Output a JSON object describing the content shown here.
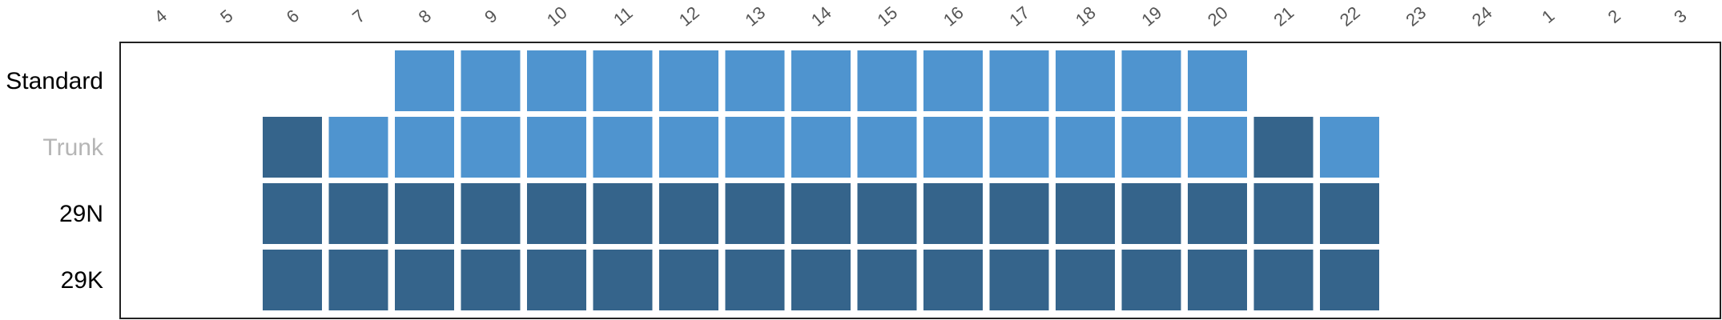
{
  "chart_data": {
    "type": "heatmap",
    "columns": [
      "4",
      "5",
      "6",
      "7",
      "8",
      "9",
      "10",
      "11",
      "12",
      "13",
      "14",
      "15",
      "16",
      "17",
      "18",
      "19",
      "20",
      "21",
      "22",
      "23",
      "24",
      "1",
      "2",
      "3"
    ],
    "rows": [
      "Standard",
      "Trunk",
      "29N",
      "29K"
    ],
    "cells": [
      [
        null,
        null,
        null,
        null,
        "light",
        "light",
        "light",
        "light",
        "light",
        "light",
        "light",
        "light",
        "light",
        "light",
        "light",
        "light",
        "light",
        null,
        null,
        null,
        null,
        null,
        null,
        null
      ],
      [
        null,
        null,
        "dark",
        "light",
        "light",
        "light",
        "light",
        "light",
        "light",
        "light",
        "light",
        "light",
        "light",
        "light",
        "light",
        "light",
        "light",
        "dark",
        "light",
        null,
        null,
        null,
        null,
        null
      ],
      [
        null,
        null,
        "dark",
        "dark",
        "dark",
        "dark",
        "dark",
        "dark",
        "dark",
        "dark",
        "dark",
        "dark",
        "dark",
        "dark",
        "dark",
        "dark",
        "dark",
        "dark",
        "dark",
        null,
        null,
        null,
        null,
        null
      ],
      [
        null,
        null,
        "dark",
        "dark",
        "dark",
        "dark",
        "dark",
        "dark",
        "dark",
        "dark",
        "dark",
        "dark",
        "dark",
        "dark",
        "dark",
        "dark",
        "dark",
        "dark",
        "dark",
        null,
        null,
        null,
        null,
        null
      ]
    ],
    "row_label_colors": [
      "#000000",
      "#b5b5b5",
      "#000000",
      "#000000"
    ],
    "colors": {
      "light": "#4f94cf",
      "dark": "#35648b"
    },
    "grid": false,
    "legend": "none"
  }
}
